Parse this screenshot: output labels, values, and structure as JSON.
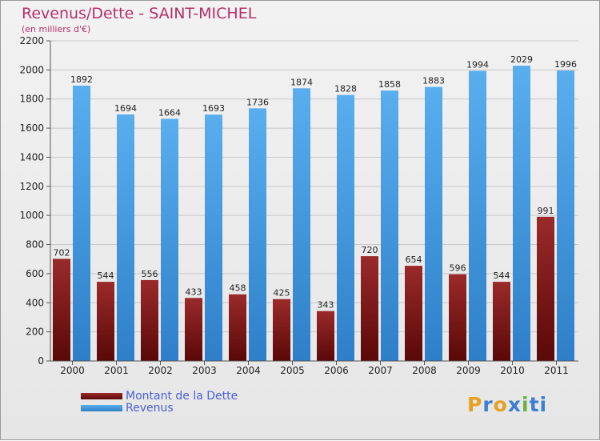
{
  "header": {
    "title": "Revenus/Dette - SAINT-MICHEL",
    "subtitle": "(en milliers d'€)"
  },
  "chart_data": {
    "type": "bar",
    "categories": [
      "2000",
      "2001",
      "2002",
      "2003",
      "2004",
      "2005",
      "2006",
      "2007",
      "2008",
      "2009",
      "2010",
      "2011"
    ],
    "series": [
      {
        "name": "Montant de la Dette",
        "color": "#7a1a1a",
        "values": [
          702,
          544,
          556,
          433,
          458,
          425,
          343,
          720,
          654,
          596,
          544,
          991
        ]
      },
      {
        "name": "Revenus",
        "color": "#4aa0e8",
        "values": [
          1892,
          1694,
          1664,
          1693,
          1736,
          1874,
          1828,
          1858,
          1883,
          1994,
          2029,
          1996
        ]
      }
    ],
    "yticks": [
      0,
      200,
      400,
      600,
      800,
      1000,
      1200,
      1400,
      1600,
      1800,
      2000,
      2200
    ],
    "ylim": [
      0,
      2200
    ],
    "grid": true,
    "legend_position": "bottom-left"
  },
  "brand": {
    "letters": [
      "P",
      "r",
      "o",
      "x",
      "i",
      "ti"
    ]
  }
}
